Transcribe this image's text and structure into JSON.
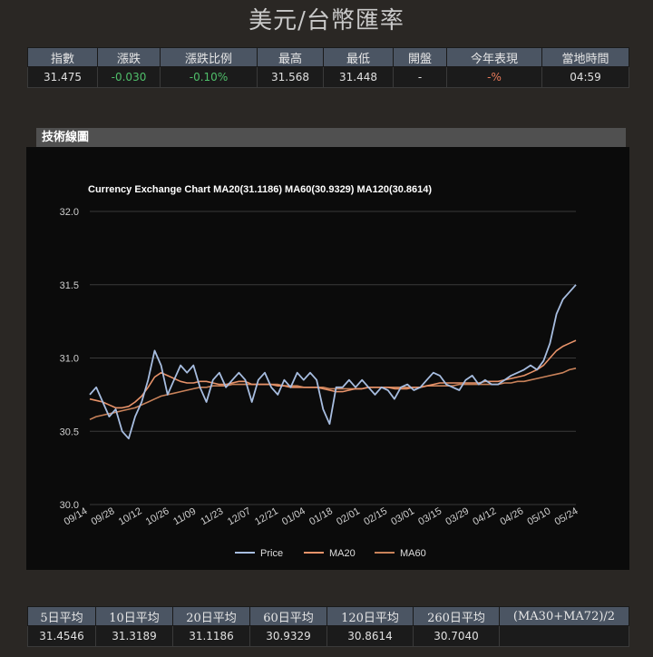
{
  "page_title": "美元/台幣匯率",
  "quote": {
    "headers": [
      "指數",
      "漲跌",
      "漲跌比例",
      "最高",
      "最低",
      "開盤",
      "今年表現",
      "當地時間"
    ],
    "values": [
      "31.475",
      "-0.030",
      "-0.10%",
      "31.568",
      "31.448",
      "-",
      "-%",
      "04:59"
    ]
  },
  "section_title": "技術線圖",
  "moving_averages": {
    "headers": [
      "5日平均",
      "10日平均",
      "20日平均",
      "60日平均",
      "120日平均",
      "260日平均",
      "(MA30+MA72)/2"
    ],
    "values": [
      "31.4546",
      "31.3189",
      "31.1186",
      "30.9329",
      "30.8614",
      "30.7040",
      ""
    ]
  },
  "colors": {
    "price": "#a7bde0",
    "ma20": "#e8936a",
    "ma60": "#c9825a",
    "grid": "#3a3a3a"
  },
  "chart_data": {
    "type": "line",
    "title": "Currency Exchange Chart MA20(31.1186) MA60(30.9329) MA120(30.8614)",
    "ylim": [
      30.0,
      32.0
    ],
    "yticks": [
      "32.0",
      "31.5",
      "31.0",
      "30.5",
      "30.0"
    ],
    "xticks": [
      "09/14",
      "09/28",
      "10/12",
      "10/26",
      "11/09",
      "11/23",
      "12/07",
      "12/21",
      "01/04",
      "01/18",
      "02/01",
      "02/15",
      "03/01",
      "03/15",
      "03/29",
      "04/12",
      "04/26",
      "05/10",
      "05/24"
    ],
    "grid": true,
    "legend_position": "bottom",
    "series": [
      {
        "name": "Price",
        "values": [
          30.75,
          30.8,
          30.7,
          30.6,
          30.65,
          30.5,
          30.45,
          30.6,
          30.7,
          30.85,
          31.05,
          30.95,
          30.75,
          30.85,
          30.95,
          30.9,
          30.95,
          30.8,
          30.7,
          30.85,
          30.9,
          30.8,
          30.85,
          30.9,
          30.85,
          30.7,
          30.85,
          30.9,
          30.8,
          30.75,
          30.85,
          30.8,
          30.9,
          30.85,
          30.9,
          30.85,
          30.65,
          30.55,
          30.8,
          30.8,
          30.85,
          30.8,
          30.85,
          30.8,
          30.75,
          30.8,
          30.78,
          30.72,
          30.8,
          30.82,
          30.78,
          30.8,
          30.85,
          30.9,
          30.88,
          30.82,
          30.8,
          30.78,
          30.85,
          30.88,
          30.82,
          30.85,
          30.82,
          30.82,
          30.85,
          30.88,
          30.9,
          30.92,
          30.95,
          30.92,
          30.98,
          31.1,
          31.3,
          31.4,
          31.45,
          31.5
        ]
      },
      {
        "name": "MA20",
        "values": [
          30.72,
          30.71,
          30.7,
          30.68,
          30.66,
          30.66,
          30.67,
          30.7,
          30.74,
          30.8,
          30.87,
          30.9,
          30.88,
          30.86,
          30.84,
          30.83,
          30.83,
          30.84,
          30.84,
          30.83,
          30.82,
          30.82,
          30.83,
          30.84,
          30.84,
          30.82,
          30.82,
          30.82,
          30.82,
          30.81,
          30.81,
          30.8,
          30.8,
          30.8,
          30.8,
          30.8,
          30.79,
          30.78,
          30.77,
          30.77,
          30.78,
          30.79,
          30.79,
          30.8,
          30.8,
          30.8,
          30.8,
          30.79,
          30.79,
          30.79,
          30.8,
          30.8,
          30.81,
          30.82,
          30.83,
          30.83,
          30.83,
          30.83,
          30.83,
          30.83,
          30.83,
          30.84,
          30.84,
          30.84,
          30.85,
          30.86,
          30.87,
          30.88,
          30.9,
          30.92,
          30.95,
          31.0,
          31.05,
          31.08,
          31.1,
          31.12
        ]
      },
      {
        "name": "MA60",
        "values": [
          30.58,
          30.6,
          30.61,
          30.62,
          30.63,
          30.64,
          30.65,
          30.66,
          30.68,
          30.7,
          30.72,
          30.74,
          30.75,
          30.76,
          30.77,
          30.78,
          30.79,
          30.8,
          30.8,
          30.81,
          30.81,
          30.81,
          30.82,
          30.82,
          30.82,
          30.82,
          30.82,
          30.82,
          30.82,
          30.82,
          30.81,
          30.81,
          30.81,
          30.8,
          30.8,
          30.8,
          30.8,
          30.79,
          30.79,
          30.79,
          30.79,
          30.79,
          30.79,
          30.8,
          30.8,
          30.8,
          30.8,
          30.8,
          30.8,
          30.8,
          30.8,
          30.8,
          30.81,
          30.81,
          30.81,
          30.81,
          30.81,
          30.82,
          30.82,
          30.82,
          30.82,
          30.82,
          30.82,
          30.82,
          30.83,
          30.83,
          30.84,
          30.84,
          30.85,
          30.86,
          30.87,
          30.88,
          30.89,
          30.9,
          30.92,
          30.93
        ]
      }
    ]
  }
}
